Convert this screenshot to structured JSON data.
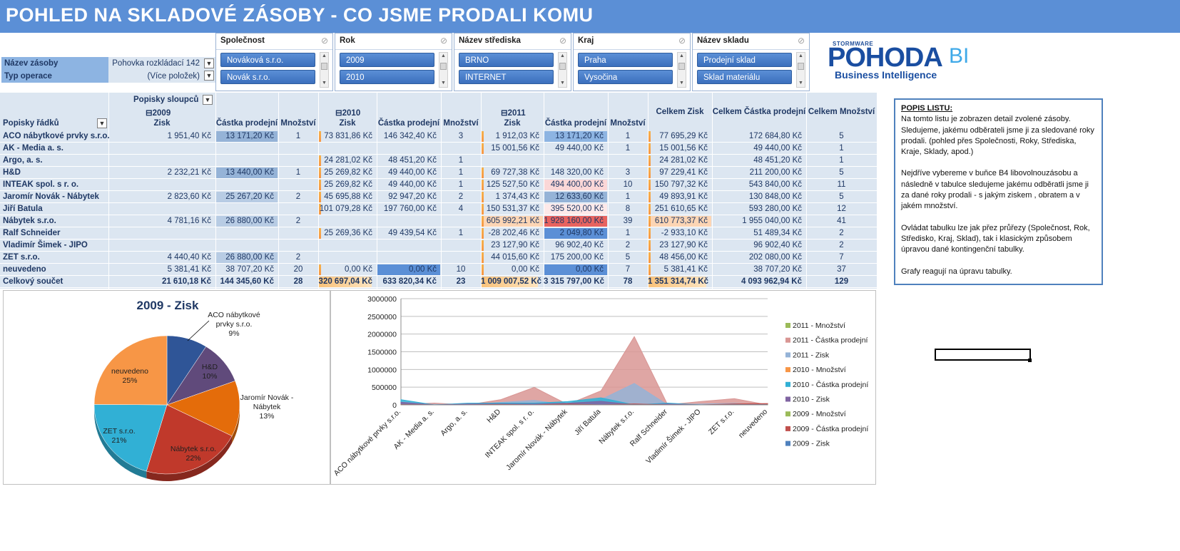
{
  "title": "POHLED  NA  SKLADOVÉ  ZÁSOBY - CO JSME PRODALI KOMU",
  "report_filters": [
    {
      "label": "Název zásoby",
      "value": "Pohovka rozkládací 142"
    },
    {
      "label": "Typ operace",
      "value": "(Více položek)"
    }
  ],
  "slicers": [
    {
      "title": "Společnost",
      "items": [
        "Nováková s.r.o.",
        "Novák s.r.o."
      ]
    },
    {
      "title": "Rok",
      "items": [
        "2009",
        "2010"
      ]
    },
    {
      "title": "Název střediska",
      "items": [
        "BRNO",
        "INTERNET"
      ]
    },
    {
      "title": "Kraj",
      "items": [
        "Praha",
        "Vysočina"
      ]
    },
    {
      "title": "Název skladu",
      "items": [
        "Prodejní sklad",
        "Sklad materiálu"
      ]
    }
  ],
  "logo": {
    "brand_small": "STORMWARE",
    "main": "POHODA",
    "bi": "BI",
    "sub": "Business Intelligence"
  },
  "pivot": {
    "column_labels_caption": "Popisky sloupců",
    "row_labels_caption": "Popisky řádků",
    "years": [
      "2009",
      "2010",
      "2011"
    ],
    "measure_headers": [
      "Zisk",
      "Částka prodejní",
      "Množství"
    ],
    "total_headers": [
      "Celkem Zisk",
      "Celkem Částka prodejní",
      "Celkem Množství"
    ],
    "rows": [
      {
        "name": "ACO nábytkové prvky s.r.o.",
        "v": [
          "1 951,40 Kč",
          "13 171,20 Kč",
          "1",
          "73 831,86 Kč",
          "146 342,40 Kč",
          "3",
          "1 912,03 Kč",
          "13 171,20 Kč",
          "1",
          "77 695,29 Kč",
          "172 684,80 Kč",
          "5"
        ]
      },
      {
        "name": "AK - Media a. s.",
        "v": [
          "",
          "",
          "",
          "",
          "",
          "",
          "15 001,56 Kč",
          "49 440,00 Kč",
          "1",
          "15 001,56 Kč",
          "49 440,00 Kč",
          "1"
        ]
      },
      {
        "name": "Argo, a. s.",
        "v": [
          "",
          "",
          "",
          "24 281,02 Kč",
          "48 451,20 Kč",
          "1",
          "",
          "",
          "",
          "24 281,02 Kč",
          "48 451,20 Kč",
          "1"
        ]
      },
      {
        "name": "H&D",
        "v": [
          "2 232,21 Kč",
          "13 440,00 Kč",
          "1",
          "25 269,82 Kč",
          "49 440,00 Kč",
          "1",
          "69 727,38 Kč",
          "148 320,00 Kč",
          "3",
          "97 229,41 Kč",
          "211 200,00 Kč",
          "5"
        ]
      },
      {
        "name": "INTEAK spol. s r. o.",
        "v": [
          "",
          "",
          "",
          "25 269,82 Kč",
          "49 440,00 Kč",
          "1",
          "125 527,50 Kč",
          "494 400,00 Kč",
          "10",
          "150 797,32 Kč",
          "543 840,00 Kč",
          "11"
        ]
      },
      {
        "name": "Jaromír Novák - Nábytek",
        "v": [
          "2 823,60 Kč",
          "25 267,20 Kč",
          "2",
          "45 695,88 Kč",
          "92 947,20 Kč",
          "2",
          "1 374,43 Kč",
          "12 633,60 Kč",
          "1",
          "49 893,91 Kč",
          "130 848,00 Kč",
          "5"
        ]
      },
      {
        "name": "Jiří Batula",
        "v": [
          "",
          "",
          "",
          "101 079,28 Kč",
          "197 760,00 Kč",
          "4",
          "150 531,37 Kč",
          "395 520,00 Kč",
          "8",
          "251 610,65 Kč",
          "593 280,00 Kč",
          "12"
        ]
      },
      {
        "name": "Nábytek s.r.o.",
        "v": [
          "4 781,16 Kč",
          "26 880,00 Kč",
          "2",
          "",
          "",
          "",
          "605 992,21 Kč",
          "1 928 160,00 Kč",
          "39",
          "610 773,37 Kč",
          "1 955 040,00 Kč",
          "41"
        ]
      },
      {
        "name": "Ralf Schneider",
        "v": [
          "",
          "",
          "",
          "25 269,36 Kč",
          "49 439,54 Kč",
          "1",
          "-28 202,46 Kč",
          "2 049,80 Kč",
          "1",
          "-2 933,10 Kč",
          "51 489,34 Kč",
          "2"
        ]
      },
      {
        "name": "Vladimír Šimek - JIPO",
        "v": [
          "",
          "",
          "",
          "",
          "",
          "",
          "23 127,90 Kč",
          "96 902,40 Kč",
          "2",
          "23 127,90 Kč",
          "96 902,40 Kč",
          "2"
        ]
      },
      {
        "name": "ZET s.r.o.",
        "v": [
          "4 440,40 Kč",
          "26 880,00 Kč",
          "2",
          "",
          "",
          "",
          "44 015,60 Kč",
          "175 200,00 Kč",
          "5",
          "48 456,00 Kč",
          "202 080,00 Kč",
          "7"
        ]
      },
      {
        "name": "neuvedeno",
        "v": [
          "5 381,41 Kč",
          "38 707,20 Kč",
          "20",
          "0,00 Kč",
          "0,00 Kč",
          "10",
          "0,00 Kč",
          "0,00 Kč",
          "7",
          "5 381,41 Kč",
          "38 707,20 Kč",
          "37"
        ]
      }
    ],
    "total": {
      "name": "Celkový součet",
      "v": [
        "21 610,18 Kč",
        "144 345,60 Kč",
        "28",
        "320 697,04 Kč",
        "633 820,34 Kč",
        "23",
        "1 009 007,52 Kč",
        "3 315 797,00 Kč",
        "78",
        "1 351 314,74 Kč",
        "4 093 962,94 Kč",
        "129"
      ]
    }
  },
  "description": {
    "heading": "POPIS LISTU:",
    "p1": "Na tomto listu je zobrazen detail zvolené zásoby. Sledujeme, jakému odběrateli jsme ji za sledované roky prodali. (pohled přes Společnosti, Roky, Střediska, Kraje, Sklady, apod.)",
    "p2": "Nejdříve vybereme v buňce B4 libovolnouzásobu a následně v tabulce sledujeme jakému odběratli jsme ji za dané roky prodali - s jakým ziskem , obratem a v jakém množství.",
    "p3": "Ovládat tabulku lze jak přez průřezy (Společnost, Rok, Středisko, Kraj, Sklad), tak i klasickým způsobem úpravou dané kontingenční tabulky.",
    "p4": "Grafy reagují na úpravu tabulky."
  },
  "chart_data": [
    {
      "type": "pie",
      "title": "2009 - Zisk",
      "categories": [
        "ACO nábytkové prvky s.r.o.",
        "H&D",
        "Jaromír Novák - Nábytek",
        "Nábytek s.r.o.",
        "ZET s.r.o.",
        "neuvedeno"
      ],
      "values": [
        1951.4,
        2232.21,
        2823.6,
        4781.16,
        4440.4,
        5381.41
      ],
      "percent_labels": [
        "9%",
        "10%",
        "13%",
        "22%",
        "21%",
        "25%"
      ],
      "colors": [
        "#2f5597",
        "#604a7b",
        "#e46c0a",
        "#c0392b",
        "#31b0d5",
        "#f79646"
      ]
    },
    {
      "type": "area",
      "categories": [
        "ACO nábytkové prvky s.r.o.",
        "AK - Media a. s.",
        "Argo, a. s.",
        "H&D",
        "INTEAK spol. s r. o.",
        "Jaromír Novák - Nábytek",
        "Jiří Batula",
        "Nábytek s.r.o.",
        "Ralf Schneider",
        "Vladimír Šimek - JIPO",
        "ZET s.r.o.",
        "neuvedeno"
      ],
      "ylim": [
        0,
        3000000
      ],
      "yticks": [
        "0",
        "500000",
        "1000000",
        "1500000",
        "2000000",
        "2500000",
        "3000000"
      ],
      "legend_position": "right",
      "series": [
        {
          "name": "2011 - Množství",
          "color": "#9bbb59",
          "values": [
            1,
            1,
            0,
            3,
            10,
            1,
            8,
            39,
            1,
            2,
            5,
            7
          ]
        },
        {
          "name": "2011 - Částka prodejní",
          "color": "#d99694",
          "values": [
            13171.2,
            49440.0,
            0,
            148320.0,
            494400.0,
            12633.6,
            395520.0,
            1928160.0,
            2049.8,
            96902.4,
            175200.0,
            0
          ]
        },
        {
          "name": "2011 - Zisk",
          "color": "#95b3d7",
          "values": [
            1912.03,
            15001.56,
            0,
            69727.38,
            125527.5,
            1374.43,
            150531.37,
            605992.21,
            -28202.46,
            23127.9,
            44015.6,
            0
          ]
        },
        {
          "name": "2010 - Množství",
          "color": "#f79646",
          "values": [
            3,
            0,
            1,
            1,
            1,
            2,
            4,
            0,
            1,
            0,
            0,
            10
          ]
        },
        {
          "name": "2010 - Částka prodejní",
          "color": "#31b0d5",
          "values": [
            146342.4,
            0,
            48451.2,
            49440.0,
            49440.0,
            92947.2,
            197760.0,
            0,
            49439.54,
            0,
            0,
            0
          ]
        },
        {
          "name": "2010 - Zisk",
          "color": "#8064a2",
          "values": [
            73831.86,
            0,
            24281.02,
            25269.82,
            25269.82,
            45695.88,
            101079.28,
            0,
            25269.36,
            0,
            0,
            0
          ]
        },
        {
          "name": "2009 - Množství",
          "color": "#9bbb59",
          "values": [
            1,
            0,
            0,
            1,
            0,
            2,
            0,
            2,
            0,
            0,
            2,
            20
          ]
        },
        {
          "name": "2009 - Částka prodejní",
          "color": "#c0504d",
          "values": [
            13171.2,
            0,
            0,
            13440.0,
            0,
            25267.2,
            0,
            26880.0,
            0,
            0,
            26880.0,
            38707.2
          ]
        },
        {
          "name": "2009 - Zisk",
          "color": "#4f81bd",
          "values": [
            1951.4,
            0,
            0,
            2232.21,
            0,
            2823.6,
            0,
            4781.16,
            0,
            0,
            4440.4,
            5381.41
          ]
        }
      ]
    }
  ]
}
